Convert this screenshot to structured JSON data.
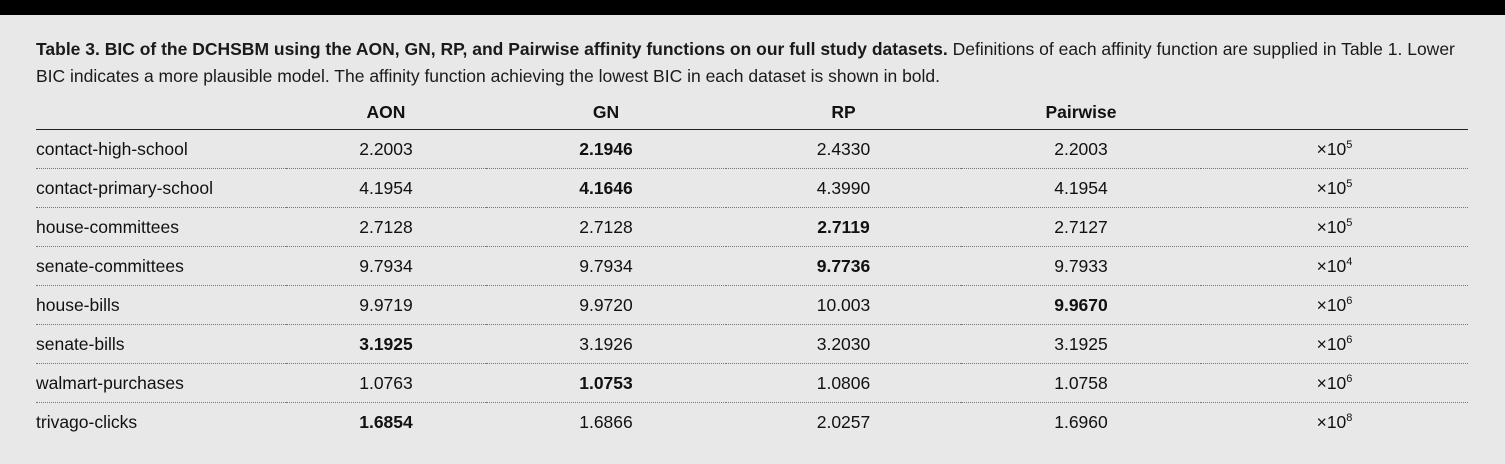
{
  "caption": {
    "bold": "Table 3. BIC of the DCHSBM using the AON, GN, RP, and Pairwise affinity functions on our full study datasets.",
    "rest": " Definitions of each affinity function are supplied in Table 1. Lower BIC indicates a more plausible model. The affinity function achieving the lowest BIC in each dataset is shown in bold."
  },
  "headers": [
    "",
    "AON",
    "GN",
    "RP",
    "Pairwise",
    ""
  ],
  "rows": [
    {
      "name": "contact-high-school",
      "values": [
        "2.2003",
        "2.1946",
        "2.4330",
        "2.2003"
      ],
      "bold_index": 1,
      "scale_base": "×10",
      "scale_exp": "5"
    },
    {
      "name": "contact-primary-school",
      "values": [
        "4.1954",
        "4.1646",
        "4.3990",
        "4.1954"
      ],
      "bold_index": 1,
      "scale_base": "×10",
      "scale_exp": "5"
    },
    {
      "name": "house-committees",
      "values": [
        "2.7128",
        "2.7128",
        "2.7119",
        "2.7127"
      ],
      "bold_index": 2,
      "scale_base": "×10",
      "scale_exp": "5"
    },
    {
      "name": "senate-committees",
      "values": [
        "9.7934",
        "9.7934",
        "9.7736",
        "9.7933"
      ],
      "bold_index": 2,
      "scale_base": "×10",
      "scale_exp": "4"
    },
    {
      "name": "house-bills",
      "values": [
        "9.9719",
        "9.9720",
        "10.003",
        "9.9670"
      ],
      "bold_index": 3,
      "scale_base": "×10",
      "scale_exp": "6"
    },
    {
      "name": "senate-bills",
      "values": [
        "3.1925",
        "3.1926",
        "3.2030",
        "3.1925"
      ],
      "bold_index": 0,
      "scale_base": "×10",
      "scale_exp": "6"
    },
    {
      "name": "walmart-purchases",
      "values": [
        "1.0763",
        "1.0753",
        "1.0806",
        "1.0758"
      ],
      "bold_index": 1,
      "scale_base": "×10",
      "scale_exp": "6"
    },
    {
      "name": "trivago-clicks",
      "values": [
        "1.6854",
        "1.6866",
        "2.0257",
        "1.6960"
      ],
      "bold_index": 0,
      "scale_base": "×10",
      "scale_exp": "8"
    }
  ]
}
